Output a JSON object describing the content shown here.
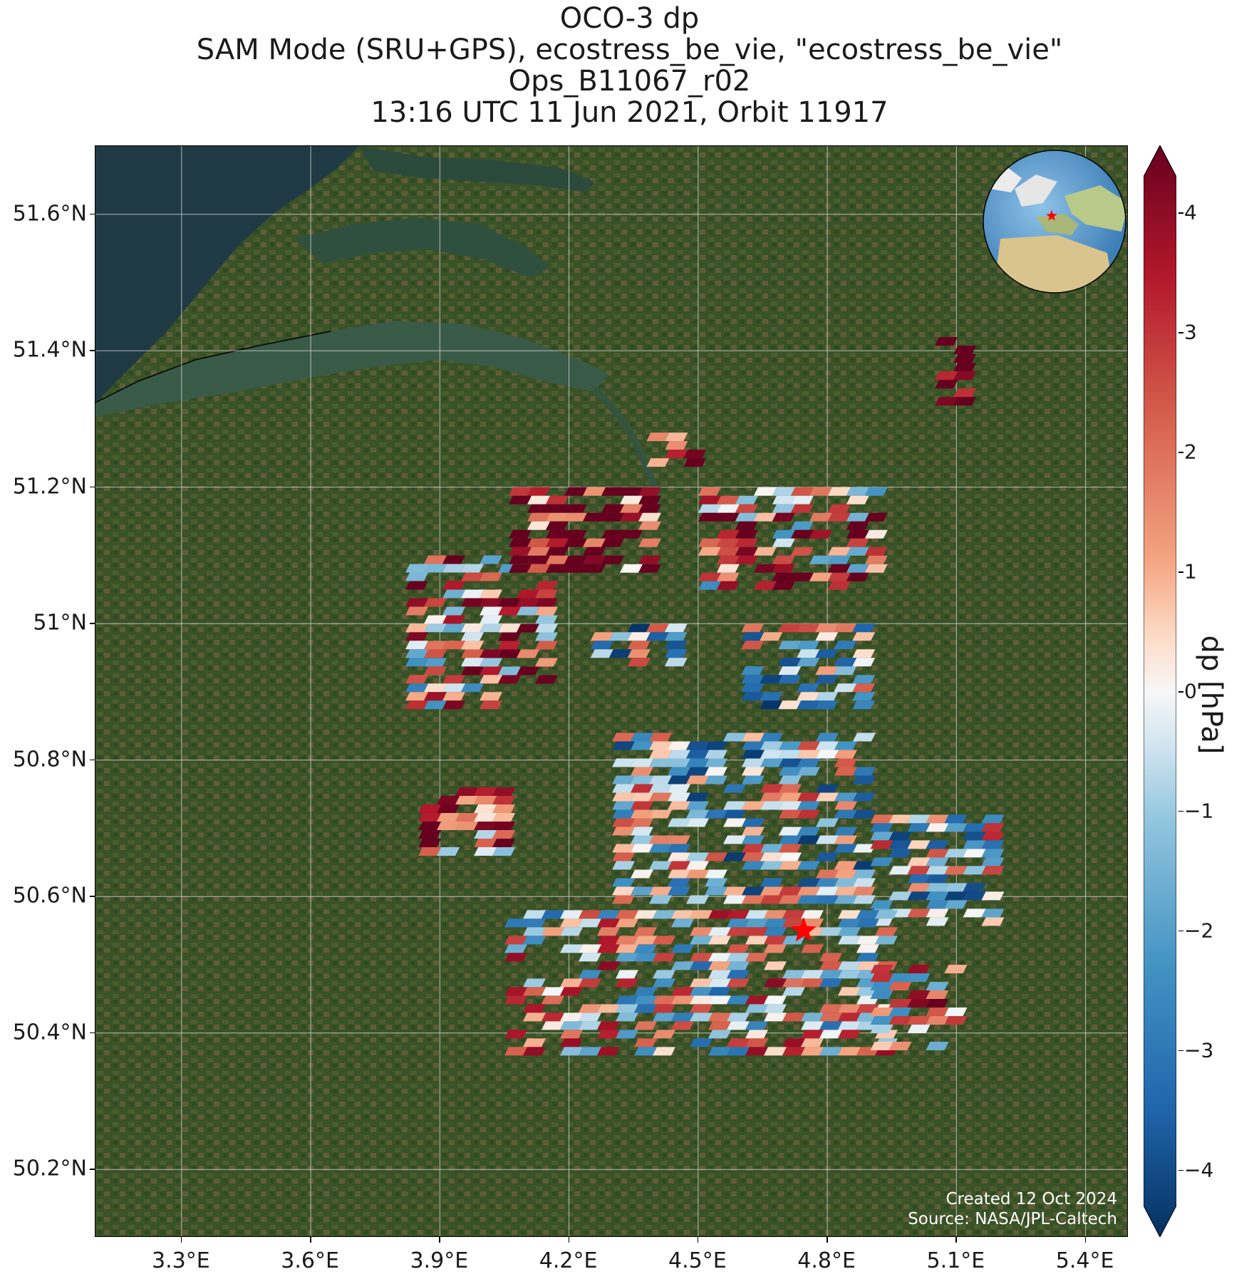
{
  "title": {
    "line1": "OCO-3 dp",
    "line2": "SAM Mode (SRU+GPS), ecostress_be_vie, \"ecostress_be_vie\"",
    "line3": "Ops_B11067_r02",
    "line4": "13:16 UTC 11 Jun 2021, Orbit 11917"
  },
  "credits": {
    "created": "Created 12 Oct 2024",
    "source": "Source: NASA/JPL-Caltech"
  },
  "colors": {
    "land": "#3d5a2a",
    "water": "#2e4a3a",
    "sea": "#1f3a44",
    "target_star": "#ff0000",
    "colormap": "RdBu_r"
  },
  "chart_data": {
    "type": "heatmap",
    "projection": "map",
    "lon_range": [
      3.1,
      5.5
    ],
    "lat_range": [
      50.1,
      51.7
    ],
    "x_ticks": [
      "3.3°E",
      "3.6°E",
      "3.9°E",
      "4.2°E",
      "4.5°E",
      "4.8°E",
      "5.1°E",
      "5.4°E"
    ],
    "x_tick_values": [
      3.3,
      3.6,
      3.9,
      4.2,
      4.5,
      4.8,
      5.1,
      5.4
    ],
    "y_ticks": [
      "51.6°N",
      "51.4°N",
      "51.2°N",
      "51°N",
      "50.8°N",
      "50.6°N",
      "50.4°N",
      "50.2°N"
    ],
    "y_tick_values": [
      51.6,
      51.4,
      51.2,
      51.0,
      50.8,
      50.6,
      50.4,
      50.2
    ],
    "grid": true,
    "colorbar": {
      "label": "dp [hPa]",
      "range": [
        -4.3,
        4.3
      ],
      "ticks": [
        "4",
        "3",
        "2",
        "1",
        "0",
        "−1",
        "−2",
        "−3",
        "−4"
      ],
      "tick_values": [
        4,
        3,
        2,
        1,
        0,
        -1,
        -2,
        -3,
        -4
      ],
      "extend": "both"
    },
    "target": {
      "lon": 4.745,
      "lat": 50.55,
      "marker": "star"
    },
    "inset_globe": {
      "center_lon": 4.7,
      "center_lat": 50.6,
      "marker": "star"
    },
    "clusters": [
      {
        "lon_min": 3.82,
        "lon_max": 4.15,
        "lat_min": 50.92,
        "lat_max": 51.1,
        "mean": 1.5
      },
      {
        "lon_min": 4.06,
        "lon_max": 4.38,
        "lat_min": 51.08,
        "lat_max": 51.2,
        "mean": 3.5
      },
      {
        "lon_min": 4.5,
        "lon_max": 4.9,
        "lat_min": 51.05,
        "lat_max": 51.2,
        "mean": 1.2
      },
      {
        "lon_min": 4.38,
        "lon_max": 4.5,
        "lat_min": 51.24,
        "lat_max": 51.28,
        "mean": 4.0
      },
      {
        "lon_min": 3.82,
        "lon_max": 4.02,
        "lat_min": 50.88,
        "lat_max": 51.0,
        "mean": 0.8
      },
      {
        "lon_min": 4.25,
        "lon_max": 4.45,
        "lat_min": 50.94,
        "lat_max": 51.0,
        "mean": -1.0
      },
      {
        "lon_min": 4.6,
        "lon_max": 4.9,
        "lat_min": 50.88,
        "lat_max": 51.0,
        "mean": -0.8
      },
      {
        "lon_min": 3.85,
        "lon_max": 4.05,
        "lat_min": 50.66,
        "lat_max": 50.76,
        "mean": 2.2
      },
      {
        "lon_min": 4.3,
        "lon_max": 4.88,
        "lat_min": 50.6,
        "lat_max": 50.84,
        "mean": -0.6
      },
      {
        "lon_min": 4.9,
        "lon_max": 5.18,
        "lat_min": 50.56,
        "lat_max": 50.72,
        "mean": -0.5
      },
      {
        "lon_min": 4.05,
        "lon_max": 4.95,
        "lat_min": 50.37,
        "lat_max": 50.58,
        "mean": 0.3
      },
      {
        "lon_min": 4.9,
        "lon_max": 5.1,
        "lat_min": 50.38,
        "lat_max": 50.5,
        "mean": 1.0
      },
      {
        "lon_min": 5.05,
        "lon_max": 5.1,
        "lat_min": 51.32,
        "lat_max": 51.42,
        "mean": 3.8
      }
    ]
  }
}
